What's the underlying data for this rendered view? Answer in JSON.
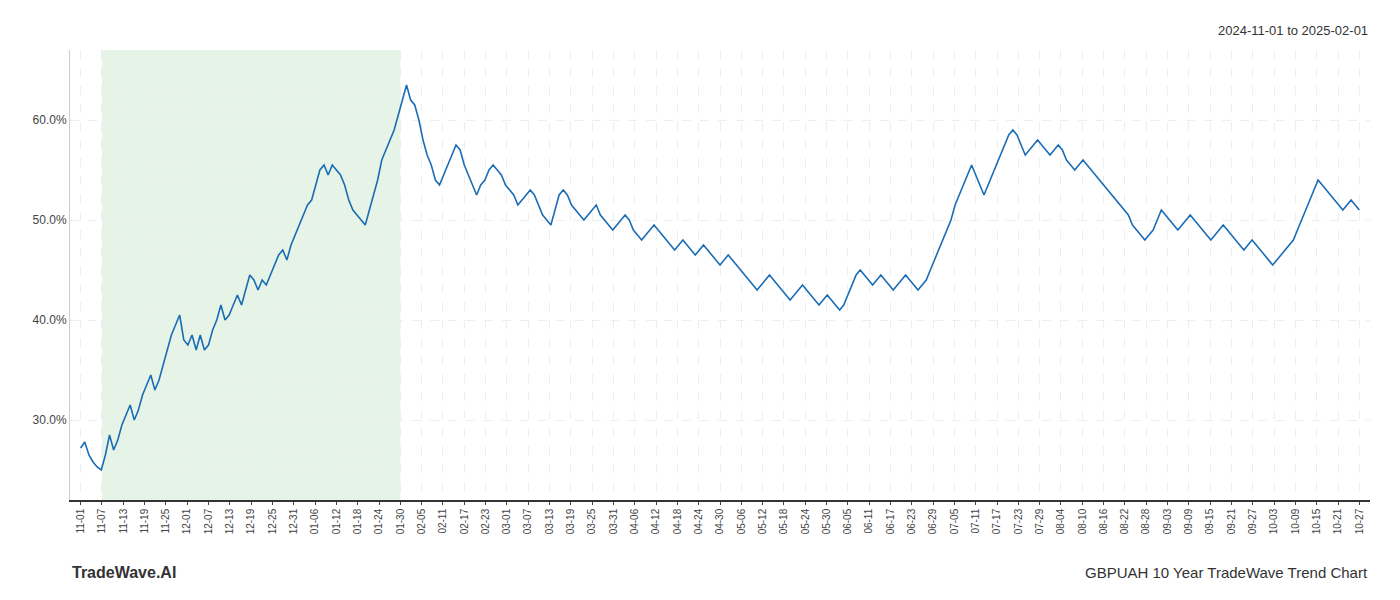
{
  "chart_data": {
    "type": "line",
    "title": "GBPUAH 10 Year TradeWave Trend Chart",
    "subtitle": "2024-11-01 to 2025-02-01",
    "annotations": [
      "TradeWave.AI"
    ],
    "color": "#1a6cb5",
    "line_style": "solid",
    "grid": true,
    "shade": {
      "from": "11-07",
      "to": "01-30",
      "color": "#c8e6c9"
    },
    "xlim": [
      -0.5,
      60.5
    ],
    "xticks": [
      {
        "value": 0,
        "label": "11-01"
      },
      {
        "value": 1,
        "label": "11-07"
      },
      {
        "value": 2,
        "label": "11-13"
      },
      {
        "value": 3,
        "label": "11-19"
      },
      {
        "value": 4,
        "label": "11-25"
      },
      {
        "value": 5,
        "label": "12-01"
      },
      {
        "value": 6,
        "label": "12-07"
      },
      {
        "value": 7,
        "label": "12-13"
      },
      {
        "value": 8,
        "label": "12-19"
      },
      {
        "value": 9,
        "label": "12-25"
      },
      {
        "value": 10,
        "label": "12-31"
      },
      {
        "value": 11,
        "label": "01-06"
      },
      {
        "value": 12,
        "label": "01-12"
      },
      {
        "value": 13,
        "label": "01-18"
      },
      {
        "value": 14,
        "label": "01-24"
      },
      {
        "value": 15,
        "label": "01-30"
      },
      {
        "value": 16,
        "label": "02-05"
      },
      {
        "value": 17,
        "label": "02-11"
      },
      {
        "value": 18,
        "label": "02-17"
      },
      {
        "value": 19,
        "label": "02-23"
      },
      {
        "value": 20,
        "label": "03-01"
      },
      {
        "value": 21,
        "label": "03-07"
      },
      {
        "value": 22,
        "label": "03-13"
      },
      {
        "value": 23,
        "label": "03-19"
      },
      {
        "value": 24,
        "label": "03-25"
      },
      {
        "value": 25,
        "label": "03-31"
      },
      {
        "value": 26,
        "label": "04-06"
      },
      {
        "value": 27,
        "label": "04-12"
      },
      {
        "value": 28,
        "label": "04-18"
      },
      {
        "value": 29,
        "label": "04-24"
      },
      {
        "value": 30,
        "label": "04-30"
      },
      {
        "value": 31,
        "label": "05-06"
      },
      {
        "value": 32,
        "label": "05-12"
      },
      {
        "value": 33,
        "label": "05-18"
      },
      {
        "value": 34,
        "label": "05-24"
      },
      {
        "value": 35,
        "label": "05-30"
      },
      {
        "value": 36,
        "label": "06-05"
      },
      {
        "value": 37,
        "label": "06-11"
      },
      {
        "value": 38,
        "label": "06-17"
      },
      {
        "value": 39,
        "label": "06-23"
      },
      {
        "value": 40,
        "label": "06-29"
      },
      {
        "value": 41,
        "label": "07-05"
      },
      {
        "value": 42,
        "label": "07-11"
      },
      {
        "value": 43,
        "label": "07-17"
      },
      {
        "value": 44,
        "label": "07-23"
      },
      {
        "value": 45,
        "label": "07-29"
      },
      {
        "value": 46,
        "label": "08-04"
      },
      {
        "value": 47,
        "label": "08-10"
      },
      {
        "value": 48,
        "label": "08-16"
      },
      {
        "value": 49,
        "label": "08-22"
      },
      {
        "value": 50,
        "label": "08-28"
      },
      {
        "value": 51,
        "label": "09-03"
      },
      {
        "value": 52,
        "label": "09-09"
      },
      {
        "value": 53,
        "label": "09-15"
      },
      {
        "value": 54,
        "label": "09-21"
      },
      {
        "value": 55,
        "label": "09-27"
      },
      {
        "value": 56,
        "label": "10-03"
      },
      {
        "value": 57,
        "label": "10-09"
      },
      {
        "value": 58,
        "label": "10-15"
      },
      {
        "value": 59,
        "label": "10-21"
      },
      {
        "value": 60,
        "label": "10-27"
      }
    ],
    "ylim": [
      22,
      67
    ],
    "yticks": [
      {
        "value": 30,
        "label": "30.0%"
      },
      {
        "value": 40,
        "label": "40.0%"
      },
      {
        "value": 50,
        "label": "50.0%"
      },
      {
        "value": 60,
        "label": "60.0%"
      }
    ],
    "x": [
      0,
      0.193548,
      0.387097,
      0.580645,
      0.774194,
      0.967742,
      1.16129,
      1.354839,
      1.548387,
      1.741935,
      1.935484,
      2.129032,
      2.322581,
      2.516129,
      2.709677,
      2.903226,
      3.096774,
      3.290323,
      3.483871,
      3.677419,
      3.870968,
      4.064516,
      4.258065,
      4.451613,
      4.645161,
      4.83871,
      5.032258,
      5.225806,
      5.419355,
      5.612903,
      5.806452,
      6,
      6.193548,
      6.387097,
      6.580645,
      6.774194,
      6.967742,
      7.16129,
      7.354839,
      7.548387,
      7.741935,
      7.935484,
      8.129032,
      8.322581,
      8.516129,
      8.709677,
      8.903226,
      9.096774,
      9.290323,
      9.483871,
      9.677419,
      9.870968,
      10.064516,
      10.258065,
      10.451613,
      10.645161,
      10.83871,
      11.032258,
      11.225806,
      11.419355,
      11.612903,
      11.806452,
      12,
      12.193548,
      12.387097,
      12.580645,
      12.774194,
      12.967742,
      13.16129,
      13.354839,
      13.548387,
      13.741935,
      13.935484,
      14.129032,
      14.322581,
      14.516129,
      14.709677,
      14.903226,
      15.096774,
      15.290323,
      15.483871,
      15.677419,
      15.870968,
      16.064516,
      16.258065,
      16.451613,
      16.645161,
      16.83871,
      17.032258,
      17.225806,
      17.419355,
      17.612903,
      17.806452,
      18,
      18.193548,
      18.387097,
      18.580645,
      18.774194,
      18.967742,
      19.16129,
      19.354839,
      19.548387,
      19.741935,
      19.935484,
      20.129032,
      20.322581,
      20.516129,
      20.709677,
      20.903226,
      21.096774,
      21.290323,
      21.483871,
      21.677419,
      21.870968,
      22.064516,
      22.258065,
      22.451613,
      22.645161,
      22.83871,
      23.032258,
      23.225806,
      23.419355,
      23.612903,
      23.806452,
      24,
      24.193548,
      24.387097,
      24.580645,
      24.774194,
      24.967742,
      25.16129,
      25.354839,
      25.548387,
      25.741935,
      25.935484,
      26.129032,
      26.322581,
      26.516129,
      26.709677,
      26.903226,
      27.096774,
      27.290323,
      27.483871,
      27.677419,
      27.870968,
      28.064516,
      28.258065,
      28.451613,
      28.645161,
      28.83871,
      29.032258,
      29.225806,
      29.419355,
      29.612903,
      29.806452,
      30,
      30.193548,
      30.387097,
      30.580645,
      30.774194,
      30.967742,
      31.16129,
      31.354839,
      31.548387,
      31.741935,
      31.935484,
      32.129032,
      32.322581,
      32.516129,
      32.709677,
      32.903226,
      33.096774,
      33.290323,
      33.483871,
      33.677419,
      33.870968,
      34.064516,
      34.258065,
      34.451613,
      34.645161,
      34.83871,
      35.032258,
      35.225806,
      35.419355,
      35.612903,
      35.806452,
      36,
      36.193548,
      36.387097,
      36.580645,
      36.774194,
      36.967742,
      37.16129,
      37.354839,
      37.548387,
      37.741935,
      37.935484,
      38.129032,
      38.322581,
      38.516129,
      38.709677,
      38.903226,
      39.096774,
      39.290323,
      39.483871,
      39.677419,
      39.870968,
      40.064516,
      40.258065,
      40.451613,
      40.645161,
      40.83871,
      41.032258,
      41.225806,
      41.419355,
      41.612903,
      41.806452,
      42,
      42.193548,
      42.387097,
      42.580645,
      42.774194,
      42.967742,
      43.16129,
      43.354839,
      43.548387,
      43.741935,
      43.935484,
      44.129032,
      44.322581,
      44.516129,
      44.709677,
      44.903226,
      45.096774,
      45.290323,
      45.483871,
      45.677419,
      45.870968,
      46.064516,
      46.258065,
      46.451613,
      46.645161,
      46.83871,
      47.032258,
      47.225806,
      47.419355,
      47.612903,
      47.806452,
      48,
      48.193548,
      48.387097,
      48.580645,
      48.774194,
      48.967742,
      49.16129,
      49.354839,
      49.548387,
      49.741935,
      49.935484,
      50.129032,
      50.322581,
      50.516129,
      50.709677,
      50.903226,
      51.096774,
      51.290323,
      51.483871,
      51.677419,
      51.870968,
      52.064516,
      52.258065,
      52.451613,
      52.645161,
      52.83871,
      53.032258,
      53.225806,
      53.419355,
      53.612903,
      53.806452,
      54,
      54.193548,
      54.387097,
      54.580645,
      54.774194,
      54.967742,
      55.16129,
      55.354839,
      55.548387,
      55.741935,
      55.935484,
      56.129032,
      56.322581,
      56.516129,
      56.709677,
      56.903226,
      57.096774,
      57.290323,
      57.483871,
      57.677419,
      57.870968,
      58.064516,
      58.258065,
      58.451613,
      58.645161,
      58.83871,
      59.032258,
      59.225806,
      59.419355,
      59.612903,
      59.806452,
      60
    ],
    "values": [
      27.2,
      27.8,
      26.5,
      25.8,
      25.3,
      25.0,
      26.5,
      28.5,
      27.0,
      28.0,
      29.5,
      30.5,
      31.5,
      30.0,
      31.0,
      32.5,
      33.5,
      34.5,
      33.0,
      34.0,
      35.5,
      37.0,
      38.5,
      39.5,
      40.5,
      38.0,
      37.5,
      38.5,
      37.0,
      38.5,
      37.0,
      37.5,
      39.0,
      40.0,
      41.5,
      40.0,
      40.5,
      41.5,
      42.5,
      41.5,
      43.0,
      44.5,
      44.0,
      43.0,
      44.0,
      43.5,
      44.5,
      45.5,
      46.5,
      47.0,
      46.0,
      47.5,
      48.5,
      49.5,
      50.5,
      51.5,
      52.0,
      53.5,
      55.0,
      55.5,
      54.5,
      55.5,
      55.0,
      54.5,
      53.5,
      52.0,
      51.0,
      50.5,
      50.0,
      49.5,
      51.0,
      52.5,
      54.0,
      56.0,
      57.0,
      58.0,
      59.0,
      60.5,
      62.0,
      63.5,
      62.0,
      61.5,
      60.0,
      58.0,
      56.5,
      55.5,
      54.0,
      53.5,
      54.5,
      55.5,
      56.5,
      57.5,
      57.0,
      55.5,
      54.5,
      53.5,
      52.5,
      53.5,
      54.0,
      55.0,
      55.5,
      55.0,
      54.5,
      53.5,
      53.0,
      52.5,
      51.5,
      52.0,
      52.5,
      53.0,
      52.5,
      51.5,
      50.5,
      50.0,
      49.5,
      51.0,
      52.5,
      53.0,
      52.5,
      51.5,
      51.0,
      50.5,
      50.0,
      50.5,
      51.0,
      51.5,
      50.5,
      50.0,
      49.5,
      49.0,
      49.5,
      50.0,
      50.5,
      50.0,
      49.0,
      48.5,
      48.0,
      48.5,
      49.0,
      49.5,
      49.0,
      48.5,
      48.0,
      47.5,
      47.0,
      47.5,
      48.0,
      47.5,
      47.0,
      46.5,
      47.0,
      47.5,
      47.0,
      46.5,
      46.0,
      45.5,
      46.0,
      46.5,
      46.0,
      45.5,
      45.0,
      44.5,
      44.0,
      43.5,
      43.0,
      43.5,
      44.0,
      44.5,
      44.0,
      43.5,
      43.0,
      42.5,
      42.0,
      42.5,
      43.0,
      43.5,
      43.0,
      42.5,
      42.0,
      41.5,
      42.0,
      42.5,
      42.0,
      41.5,
      41.0,
      41.5,
      42.5,
      43.5,
      44.5,
      45.0,
      44.5,
      44.0,
      43.5,
      44.0,
      44.5,
      44.0,
      43.5,
      43.0,
      43.5,
      44.0,
      44.5,
      44.0,
      43.5,
      43.0,
      43.5,
      44.0,
      45.0,
      46.0,
      47.0,
      48.0,
      49.0,
      50.0,
      51.5,
      52.5,
      53.5,
      54.5,
      55.5,
      54.5,
      53.5,
      52.5,
      53.5,
      54.5,
      55.5,
      56.5,
      57.5,
      58.5,
      59.0,
      58.5,
      57.5,
      56.5,
      57.0,
      57.5,
      58.0,
      57.5,
      57.0,
      56.5,
      57.0,
      57.5,
      57.0,
      56.0,
      55.5,
      55.0,
      55.5,
      56.0,
      55.5,
      55.0,
      54.5,
      54.0,
      53.5,
      53.0,
      52.5,
      52.0,
      51.5,
      51.0,
      50.5,
      49.5,
      49.0,
      48.5,
      48.0,
      48.5,
      49.0,
      50.0,
      51.0,
      50.5,
      50.0,
      49.5,
      49.0,
      49.5,
      50.0,
      50.5,
      50.0,
      49.5,
      49.0,
      48.5,
      48.0,
      48.5,
      49.0,
      49.5,
      49.0,
      48.5,
      48.0,
      47.5,
      47.0,
      47.5,
      48.0,
      47.5,
      47.0,
      46.5,
      46.0,
      45.5,
      46.0,
      46.5,
      47.0,
      47.5,
      48.0,
      49.0,
      50.0,
      51.0,
      52.0,
      53.0,
      54.0,
      53.5,
      53.0,
      52.5,
      52.0,
      51.5,
      51.0,
      51.5,
      52.0,
      51.5,
      51.0
    ]
  }
}
